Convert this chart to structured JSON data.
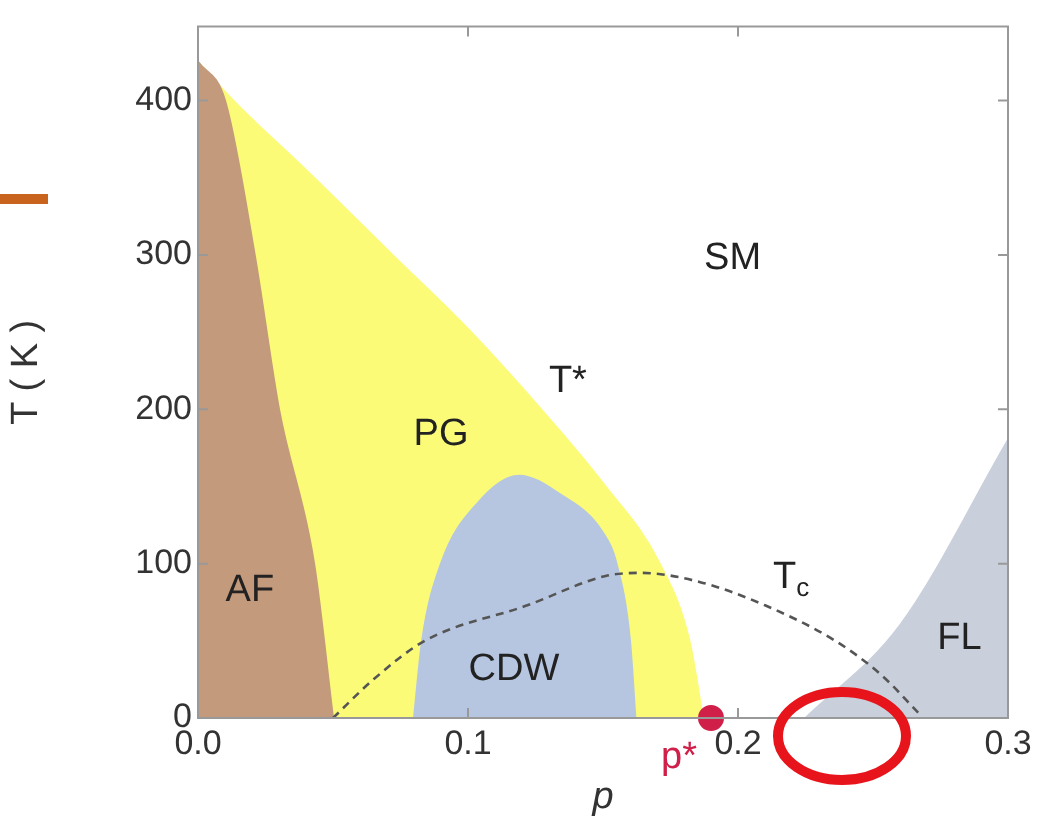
{
  "chart_data": {
    "type": "area",
    "xlabel": "p",
    "ylabel": "T ( K )",
    "xlim": [
      0,
      0.3
    ],
    "ylim": [
      0,
      448
    ],
    "xticks": [
      {
        "value": 0,
        "label": "0.0"
      },
      0.1,
      0.2,
      0.3
    ],
    "yticks": [
      0,
      100,
      200,
      300,
      400
    ],
    "grid": false,
    "legend": false,
    "series": [
      {
        "color": "#fbfb78",
        "x": [
          0,
          0.013,
          0.04,
          0.072,
          0.1,
          0.127,
          0.15,
          0.171,
          0.182,
          0.187
        ],
        "values": [
          425,
          400,
          355,
          300,
          252,
          200,
          152,
          100,
          50,
          0
        ]
      },
      {
        "color": "#c49a7c",
        "x": [
          0,
          0.01,
          0.021,
          0.03,
          0.043,
          0.05
        ],
        "values": [
          425,
          400,
          300,
          200,
          100,
          0
        ]
      },
      {
        "color": "#b6c6e0",
        "x": [
          0.08,
          0.083,
          0.09,
          0.104,
          0.119,
          0.134,
          0.15,
          0.155,
          0.16,
          0.162
        ],
        "values": [
          0,
          50,
          100,
          140,
          157,
          145,
          120,
          100,
          50,
          0
        ]
      },
      {
        "color": "#c9d0dc",
        "x": [
          0.225,
          0.26,
          0.3
        ],
        "values": [
          0,
          60,
          180
        ]
      },
      {
        "type": "line",
        "color": "#555555",
        "line_style": "dashed",
        "x": [
          0.05,
          0.065,
          0.084,
          0.122,
          0.151,
          0.164,
          0.186,
          0.21,
          0.236,
          0.253,
          0.267
        ],
        "values": [
          0,
          25,
          50,
          73,
          92,
          94,
          88,
          73,
          50,
          28,
          3
        ]
      },
      {
        "type": "scatter",
        "color": "#d0204a",
        "marker": "circle",
        "x": [
          0.19
        ],
        "values": [
          0
        ]
      }
    ],
    "annotations": [
      "AF",
      "PG",
      "CDW",
      "SM",
      "FL",
      {
        "text": "T*",
        "x": 0.127,
        "y": 200
      },
      {
        "text": "T$_{c}$",
        "x": 0.21,
        "y": 73
      },
      {
        "text": "p*",
        "x": 0.19,
        "y": 0
      }
    ]
  }
}
